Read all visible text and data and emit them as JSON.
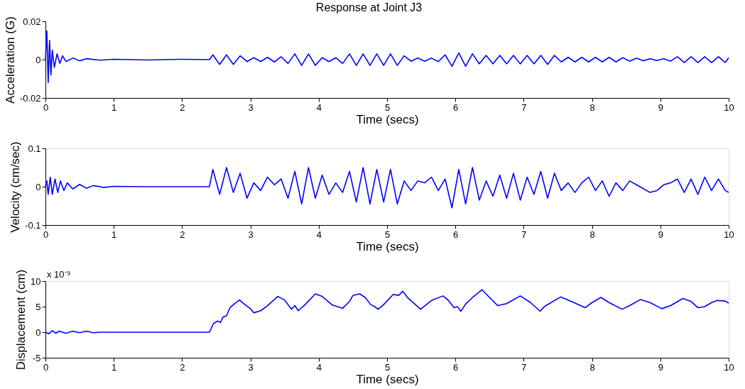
{
  "chart_data": [
    {
      "type": "line",
      "title": "Response at Joint J3",
      "xlabel": "Time (secs)",
      "ylabel": "Acceleration (G)",
      "x": [
        0,
        0.02,
        0.04,
        0.06,
        0.08,
        0.1,
        0.13,
        0.17,
        0.21,
        0.25,
        0.3,
        0.4,
        0.5,
        0.6,
        0.8,
        1.0,
        1.5,
        2.0,
        2.4,
        2.45,
        2.55,
        2.65,
        2.75,
        2.85,
        2.95,
        3.05,
        3.15,
        3.25,
        3.35,
        3.45,
        3.55,
        3.65,
        3.75,
        3.85,
        3.95,
        4.05,
        4.15,
        4.25,
        4.35,
        4.45,
        4.55,
        4.65,
        4.75,
        4.85,
        4.95,
        5.05,
        5.15,
        5.25,
        5.35,
        5.45,
        5.55,
        5.65,
        5.75,
        5.85,
        5.95,
        6.05,
        6.15,
        6.25,
        6.35,
        6.45,
        6.55,
        6.65,
        6.75,
        6.85,
        6.95,
        7.05,
        7.15,
        7.25,
        7.35,
        7.45,
        7.55,
        7.65,
        7.75,
        7.85,
        7.95,
        8.05,
        8.15,
        8.25,
        8.35,
        8.45,
        8.55,
        8.65,
        8.75,
        8.85,
        8.95,
        9.05,
        9.15,
        9.25,
        9.35,
        9.45,
        9.55,
        9.65,
        9.75,
        9.85,
        9.95,
        10
      ],
      "series": [
        {
          "color": "#0000ff",
          "values": [
            0,
            0.015,
            -0.012,
            0.01,
            -0.008,
            0.005,
            -0.004,
            0.003,
            -0.002,
            0.002,
            -0.001,
            0.0008,
            -0.0006,
            0.0005,
            -0.0003,
            0.0002,
            -0.0002,
            0.0002,
            0,
            0.0025,
            -0.0025,
            0.0025,
            -0.0025,
            0.002,
            -0.001,
            0.001,
            -0.001,
            0.0012,
            -0.0012,
            0.0015,
            -0.002,
            0.003,
            -0.003,
            0.003,
            -0.003,
            0.001,
            -0.001,
            0.001,
            -0.002,
            0.003,
            -0.003,
            0.003,
            -0.003,
            0.003,
            -0.003,
            0.003,
            -0.003,
            0.002,
            -0.0008,
            0.0008,
            -0.0008,
            0.0008,
            -0.001,
            0.0025,
            -0.0035,
            0.0035,
            -0.0035,
            0.003,
            -0.0022,
            0.0022,
            -0.0022,
            0.0022,
            -0.0022,
            0.0022,
            -0.0022,
            0.0022,
            -0.0022,
            0.0022,
            -0.0025,
            0.0022,
            -0.0012,
            0.0012,
            -0.0012,
            0.0012,
            -0.0012,
            0.0012,
            -0.0012,
            0.0012,
            -0.0012,
            0.001,
            -0.0008,
            0.0007,
            -0.0006,
            0.0005,
            -0.0005,
            0.0005,
            -0.0008,
            0.0015,
            -0.0015,
            0.0015,
            -0.0015,
            0.0015,
            -0.0015,
            0.0015,
            -0.0015,
            0.001
          ]
        }
      ],
      "xlim": [
        0,
        10
      ],
      "xticks": [
        0,
        1,
        2,
        3,
        4,
        5,
        6,
        7,
        8,
        9,
        10
      ],
      "ylim": [
        -0.02,
        0.02
      ],
      "yticks": [
        -0.02,
        0,
        0.02
      ],
      "grid": false
    },
    {
      "type": "line",
      "xlabel": "Time (secs)",
      "ylabel": "Velocity (cm/sec)",
      "x": [
        0,
        0.02,
        0.04,
        0.07,
        0.1,
        0.14,
        0.18,
        0.22,
        0.27,
        0.32,
        0.4,
        0.5,
        0.6,
        0.7,
        0.85,
        1.0,
        1.5,
        2.0,
        2.4,
        2.45,
        2.55,
        2.65,
        2.75,
        2.85,
        2.95,
        3.05,
        3.15,
        3.25,
        3.35,
        3.45,
        3.55,
        3.65,
        3.75,
        3.85,
        3.95,
        4.05,
        4.15,
        4.25,
        4.35,
        4.45,
        4.55,
        4.65,
        4.75,
        4.85,
        4.95,
        5.05,
        5.15,
        5.25,
        5.35,
        5.45,
        5.55,
        5.65,
        5.75,
        5.85,
        5.95,
        6.05,
        6.15,
        6.25,
        6.35,
        6.45,
        6.55,
        6.65,
        6.75,
        6.85,
        6.95,
        7.05,
        7.15,
        7.25,
        7.35,
        7.45,
        7.55,
        7.65,
        7.75,
        7.85,
        7.95,
        8.05,
        8.15,
        8.25,
        8.35,
        8.45,
        8.55,
        8.65,
        8.75,
        8.85,
        8.95,
        9.05,
        9.15,
        9.25,
        9.35,
        9.45,
        9.55,
        9.65,
        9.75,
        9.85,
        9.95,
        10
      ],
      "series": [
        {
          "color": "#0000ff",
          "values": [
            0,
            0.015,
            -0.02,
            0.025,
            -0.02,
            0.02,
            -0.015,
            0.015,
            -0.01,
            0.01,
            -0.006,
            0.006,
            -0.004,
            0.003,
            -0.002,
            0.001,
            0,
            0,
            0,
            0.045,
            -0.02,
            0.05,
            -0.015,
            0.035,
            -0.03,
            0.01,
            -0.01,
            0.025,
            0.005,
            0.02,
            -0.03,
            0.04,
            -0.045,
            0.05,
            -0.03,
            0.03,
            -0.02,
            0.01,
            -0.015,
            0.04,
            -0.04,
            0.05,
            -0.045,
            0.045,
            -0.04,
            0.045,
            -0.045,
            0.015,
            -0.01,
            0.015,
            0.01,
            0.025,
            -0.01,
            0.02,
            -0.055,
            0.045,
            -0.045,
            0.05,
            -0.035,
            0.015,
            -0.025,
            0.03,
            -0.03,
            0.035,
            -0.035,
            0.025,
            -0.02,
            0.04,
            -0.03,
            0.035,
            -0.01,
            0.01,
            -0.015,
            0.01,
            0.025,
            -0.01,
            0.015,
            -0.025,
            0.01,
            -0.01,
            0.015,
            0.005,
            -0.005,
            -0.015,
            -0.01,
            0.005,
            0.01,
            0.02,
            -0.015,
            0.02,
            -0.02,
            0.025,
            -0.01,
            0.02,
            -0.01,
            -0.015
          ]
        }
      ],
      "xlim": [
        0,
        10
      ],
      "xticks": [
        0,
        1,
        2,
        3,
        4,
        5,
        6,
        7,
        8,
        9,
        10
      ],
      "ylim": [
        -0.1,
        0.1
      ],
      "yticks": [
        -0.1,
        0,
        0.1
      ],
      "grid": false
    },
    {
      "type": "line",
      "xlabel": "Time (secs)",
      "ylabel": "Displacement (cm)",
      "annotations": [
        "x 10⁻³"
      ],
      "x": [
        0,
        0.05,
        0.1,
        0.15,
        0.2,
        0.3,
        0.4,
        0.5,
        0.6,
        0.7,
        0.8,
        2.4,
        2.46,
        2.52,
        2.56,
        2.6,
        2.65,
        2.7,
        2.77,
        2.84,
        2.9,
        3.0,
        3.05,
        3.15,
        3.25,
        3.4,
        3.5,
        3.6,
        3.65,
        3.7,
        3.8,
        3.95,
        4.05,
        4.2,
        4.35,
        4.45,
        4.5,
        4.6,
        4.68,
        4.76,
        4.82,
        4.87,
        4.95,
        5.09,
        5.17,
        5.23,
        5.3,
        5.49,
        5.65,
        5.82,
        5.9,
        5.98,
        6.03,
        6.08,
        6.15,
        6.25,
        6.39,
        6.5,
        6.62,
        6.75,
        6.95,
        7.1,
        7.24,
        7.3,
        7.4,
        7.54,
        7.7,
        7.9,
        8.0,
        8.13,
        8.25,
        8.44,
        8.55,
        8.71,
        8.85,
        9.02,
        9.15,
        9.33,
        9.45,
        9.55,
        9.65,
        9.75,
        9.83,
        9.95,
        10
      ],
      "series": [
        {
          "color": "#0000ff",
          "values": [
            0,
            -0.3,
            0.3,
            -0.2,
            0.2,
            -0.2,
            0.2,
            -0.1,
            0.2,
            -0.1,
            0,
            0,
            1.7,
            2.2,
            1.9,
            3.0,
            3.2,
            4.8,
            5.6,
            6.3,
            5.6,
            4.6,
            3.8,
            4.2,
            5.2,
            7.0,
            6.3,
            4.5,
            5.2,
            4.2,
            5.4,
            7.5,
            7.0,
            5.3,
            4.7,
            6.0,
            7.2,
            7.5,
            6.8,
            5.4,
            5.0,
            4.5,
            5.4,
            7.4,
            7.2,
            8.0,
            6.8,
            4.5,
            6.2,
            7.1,
            6.2,
            4.8,
            5.0,
            4.1,
            5.5,
            6.8,
            8.3,
            6.8,
            5.2,
            5.6,
            7.1,
            5.8,
            4.1,
            5.0,
            5.8,
            6.9,
            6.0,
            4.8,
            5.8,
            6.8,
            5.8,
            4.5,
            5.2,
            6.4,
            5.8,
            4.6,
            5.2,
            6.6,
            6.0,
            4.8,
            5.0,
            5.8,
            6.2,
            6.1,
            5.7
          ]
        }
      ],
      "xlim": [
        0,
        10
      ],
      "xticks": [
        0,
        1,
        2,
        3,
        4,
        5,
        6,
        7,
        8,
        9,
        10
      ],
      "ylim": [
        -5,
        10
      ],
      "yticks": [
        -5,
        0,
        5,
        10
      ],
      "grid": false
    }
  ]
}
